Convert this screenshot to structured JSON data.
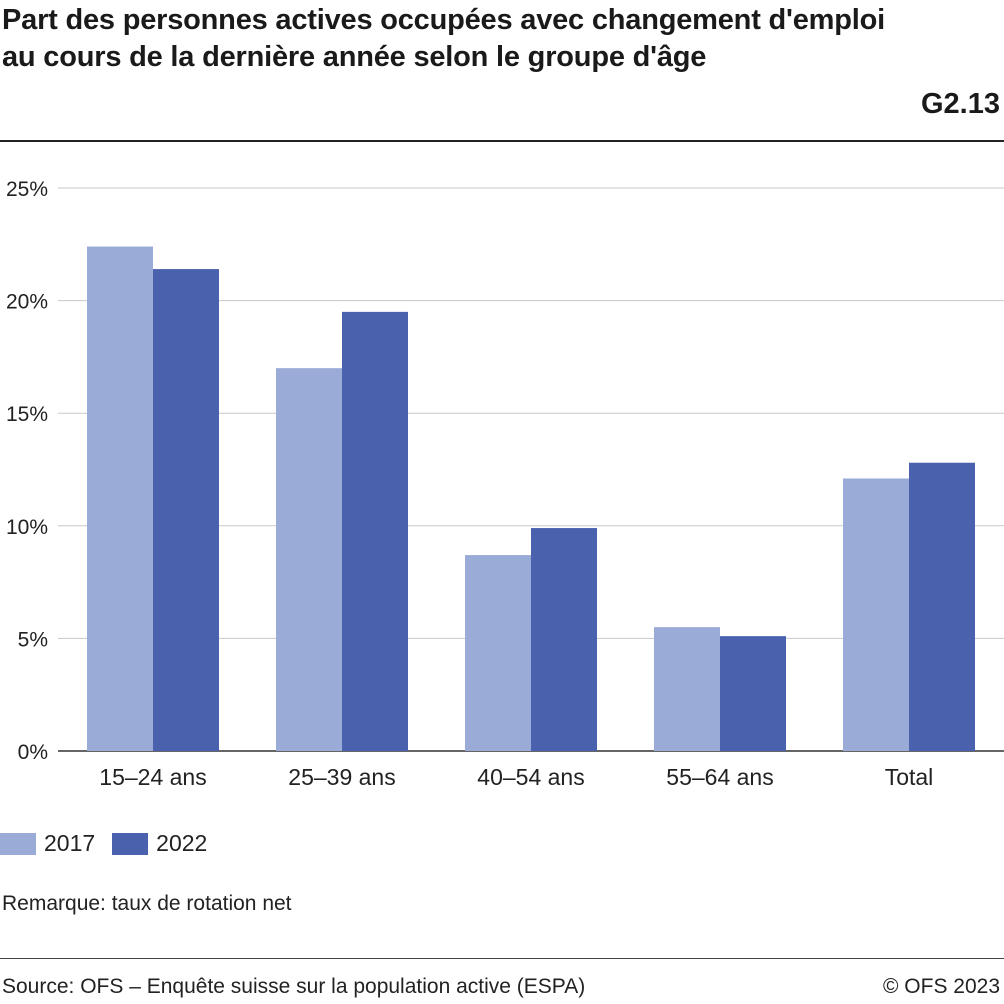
{
  "header": {
    "title": "Part des personnes actives occupées avec changement d'emploi au cours de la dernière année selon le groupe d'âge",
    "figure_id": "G2.13"
  },
  "chart_data": {
    "type": "bar",
    "categories": [
      "15–24 ans",
      "25–39 ans",
      "40–54 ans",
      "55–64 ans",
      "Total"
    ],
    "series": [
      {
        "name": "2017",
        "values": [
          22.4,
          17.0,
          8.7,
          5.5,
          12.1
        ],
        "color": "#9aabd8"
      },
      {
        "name": "2022",
        "values": [
          21.4,
          19.5,
          9.9,
          5.1,
          12.8
        ],
        "color": "#4a62ad"
      }
    ],
    "ylim": [
      0,
      25
    ],
    "yticks": [
      0,
      5,
      10,
      15,
      20,
      25
    ],
    "ytick_labels": [
      "0%",
      "5%",
      "10%",
      "15%",
      "20%",
      "25%"
    ],
    "grid": true,
    "legend_placement": "bottom-left",
    "xlabel": "",
    "ylabel": ""
  },
  "footer": {
    "note": "Remarque: taux de rotation net",
    "source": "Source: OFS – Enquête suisse sur la population active (ESPA)",
    "copyright": "© OFS 2023"
  }
}
